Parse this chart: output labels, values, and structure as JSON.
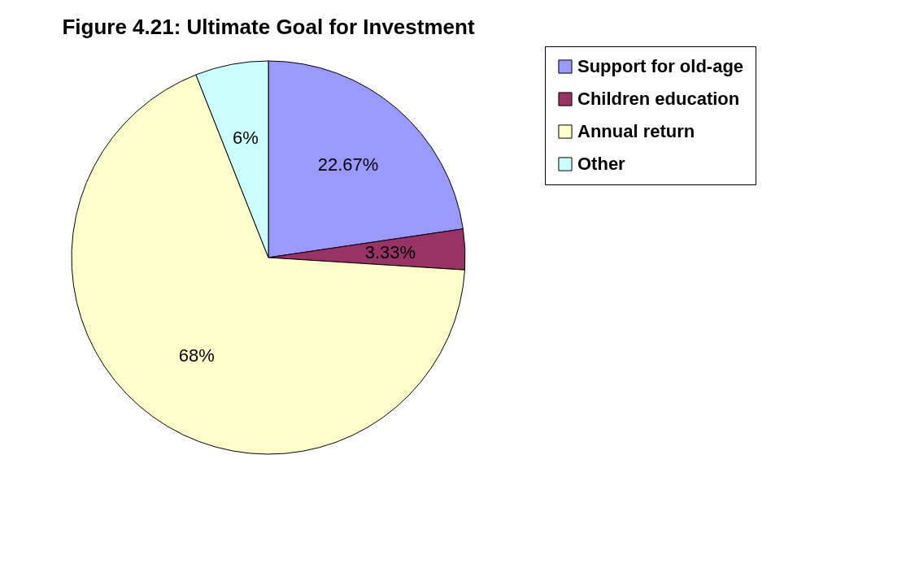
{
  "chart_data": {
    "type": "pie",
    "title": "Figure 4.21: Ultimate Goal for Investment",
    "categories": [
      "Support for old-age",
      "Children education",
      "Annual return",
      "Other"
    ],
    "values": [
      22.67,
      3.33,
      68,
      6
    ],
    "colors": [
      "#9999ff",
      "#993366",
      "#ffffcc",
      "#ccffff"
    ],
    "value_labels": [
      "22.67%",
      "3.33%",
      "68%",
      "6%"
    ],
    "legend": "right"
  }
}
